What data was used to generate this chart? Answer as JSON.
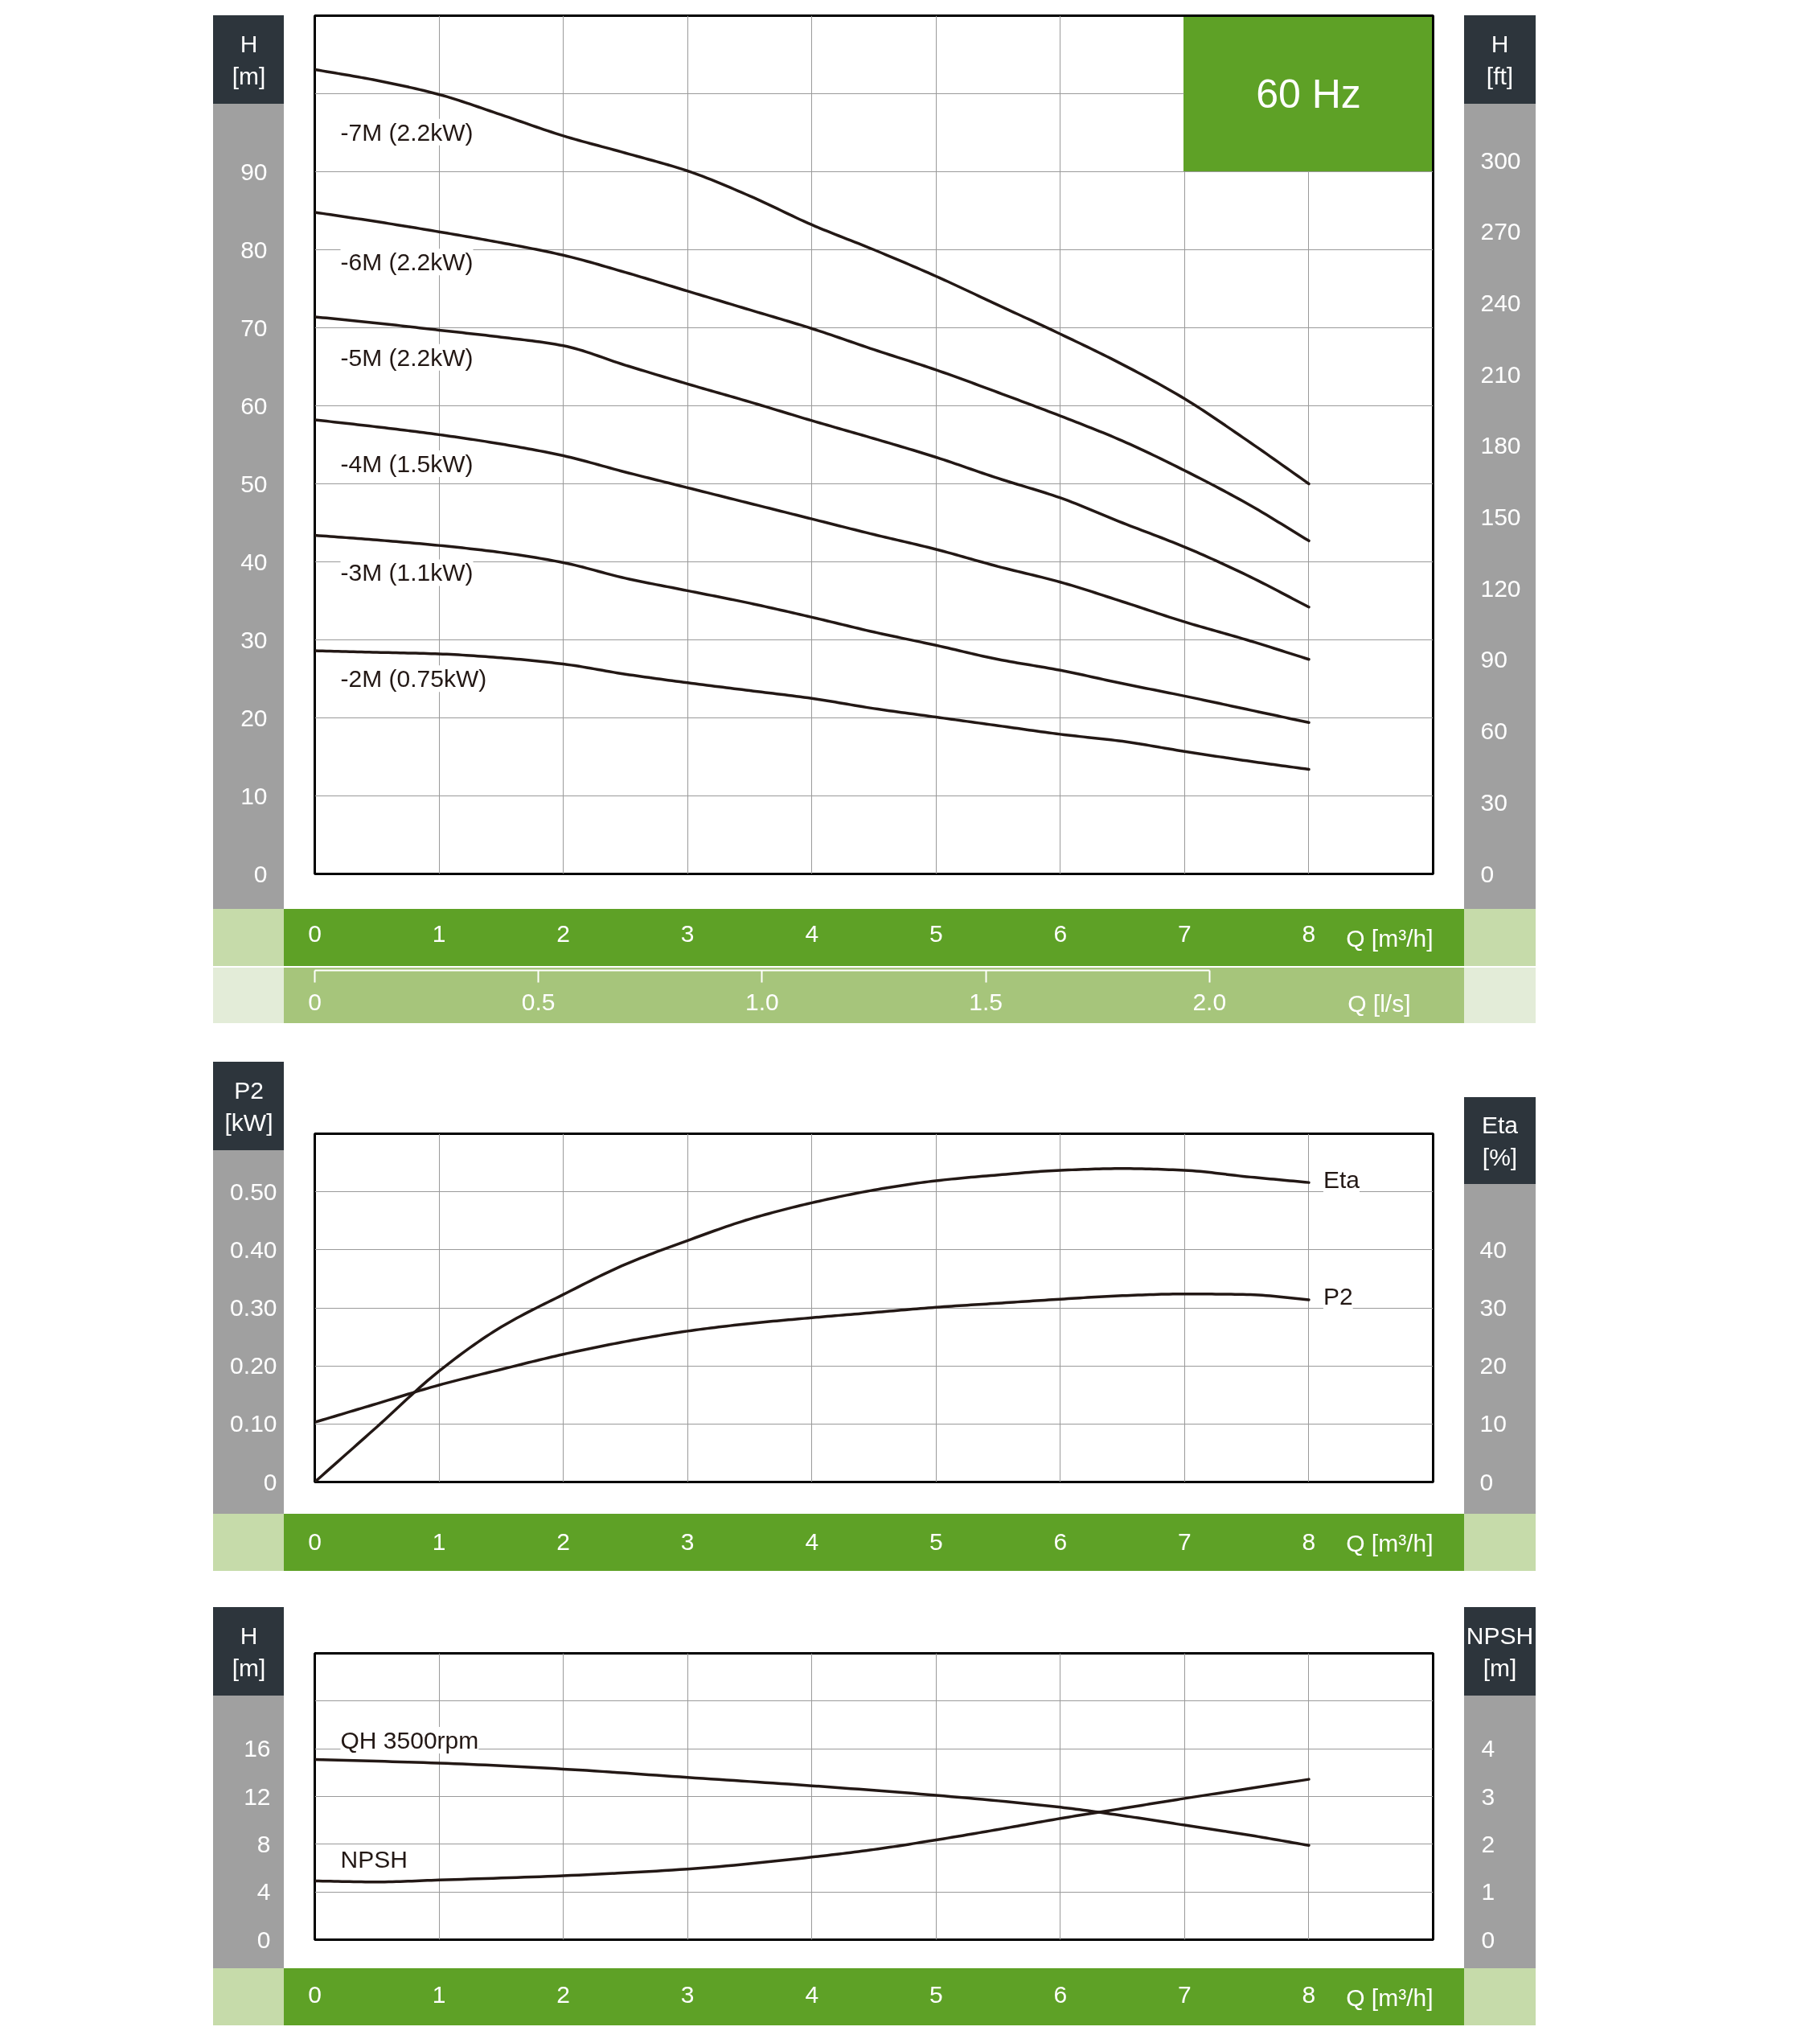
{
  "chart_data": [
    {
      "type": "line",
      "title": "60 Hz",
      "xlabel": "Q [m³/h]",
      "ylabel": "H [m]",
      "y2label": "H [ft]",
      "x2label": "Q [l/s]",
      "xlim": [
        0,
        9
      ],
      "xticks": [
        0,
        1,
        2,
        3,
        4,
        5,
        6,
        7,
        8
      ],
      "ylim": [
        0,
        110
      ],
      "yticks": [
        0,
        10,
        20,
        30,
        40,
        50,
        60,
        70,
        80,
        90,
        {
          "value": 100,
          "label": null
        }
      ],
      "y2lim": [
        0,
        360.9
      ],
      "y2ticks": [
        0,
        30,
        60,
        90,
        120,
        150,
        180,
        210,
        240,
        270,
        300
      ],
      "x2lim": [
        0,
        2.5
      ],
      "x2ticks": [
        0,
        0.5,
        {
          "value": 1,
          "label": "1.0"
        },
        1.5,
        {
          "value": 2,
          "label": "2.0"
        }
      ],
      "grid": true,
      "x": [
        0,
        0.5,
        1,
        1.5,
        2,
        2.5,
        3,
        3.5,
        4,
        4.5,
        5,
        5.5,
        6,
        6.5,
        7,
        7.5,
        8
      ],
      "series": [
        {
          "name": "-7M (2.2kW)",
          "color": "#231815",
          "values": [
            103.1,
            101.7,
            99.9,
            97.3,
            94.6,
            92.4,
            90.1,
            86.9,
            83.2,
            80.0,
            76.6,
            72.9,
            69.2,
            65.3,
            60.9,
            55.6,
            50.0
          ]
        },
        {
          "name": "-6M (2.2kW)",
          "color": "#231815",
          "values": [
            84.8,
            83.6,
            82.3,
            80.9,
            79.3,
            77.1,
            74.7,
            72.3,
            69.9,
            67.2,
            64.6,
            61.7,
            58.7,
            55.5,
            51.7,
            47.5,
            42.7
          ]
        },
        {
          "name": "-5M (2.2kW)",
          "color": "#231815",
          "values": [
            71.4,
            70.6,
            69.7,
            68.8,
            67.7,
            65.2,
            62.8,
            60.5,
            58.1,
            55.8,
            53.4,
            50.7,
            48.2,
            45.0,
            41.9,
            38.3,
            34.2
          ]
        },
        {
          "name": "-4M (1.5kW)",
          "color": "#231815",
          "values": [
            58.2,
            57.3,
            56.3,
            55.1,
            53.6,
            51.5,
            49.5,
            47.5,
            45.5,
            43.5,
            41.6,
            39.4,
            37.4,
            34.9,
            32.3,
            30.0,
            27.5
          ]
        },
        {
          "name": "-3M (1.1kW)",
          "color": "#231815",
          "values": [
            43.4,
            42.8,
            42.1,
            41.2,
            39.9,
            37.9,
            36.3,
            34.7,
            32.9,
            31.0,
            29.3,
            27.5,
            26.1,
            24.4,
            22.8,
            21.1,
            19.4
          ]
        },
        {
          "name": "-2M (0.75kW)",
          "color": "#231815",
          "values": [
            28.6,
            28.4,
            28.2,
            27.7,
            26.9,
            25.6,
            24.5,
            23.5,
            22.5,
            21.2,
            20.1,
            19.0,
            17.9,
            17.0,
            15.7,
            14.5,
            13.4
          ]
        }
      ]
    },
    {
      "type": "line",
      "xlabel": "Q [m³/h]",
      "ylabel": "P2 [kW]",
      "y2label": "Eta [%]",
      "xlim": [
        0,
        9
      ],
      "xticks": [
        0,
        1,
        2,
        3,
        4,
        5,
        6,
        7,
        8
      ],
      "ylim": [
        0,
        0.6
      ],
      "yticks": [
        0,
        {
          "value": 0.1,
          "label": "0.10"
        },
        {
          "value": 0.2,
          "label": "0.20"
        },
        {
          "value": 0.3,
          "label": "0.30"
        },
        {
          "value": 0.4,
          "label": "0.40"
        },
        {
          "value": 0.5,
          "label": "0.50"
        }
      ],
      "y2lim": [
        0,
        60
      ],
      "y2ticks": [
        0,
        10,
        20,
        30,
        40
      ],
      "grid": true,
      "x": [
        0,
        0.5,
        1,
        1.5,
        2,
        2.5,
        3,
        3.5,
        4,
        4.5,
        5,
        5.5,
        6,
        6.5,
        7,
        7.5,
        8
      ],
      "series": [
        {
          "name": "Eta",
          "color": "#231815",
          "axis": "y2",
          "values": [
            0,
            9.5,
            19.1,
            26.7,
            32.3,
            37.5,
            41.6,
            45.3,
            48.1,
            50.3,
            51.9,
            52.9,
            53.7,
            54.0,
            53.7,
            52.6,
            51.6
          ]
        },
        {
          "name": "P2",
          "color": "#231815",
          "values": [
            0.103,
            0.135,
            0.167,
            0.194,
            0.22,
            0.242,
            0.26,
            0.273,
            0.283,
            0.292,
            0.301,
            0.308,
            0.315,
            0.321,
            0.324,
            0.323,
            0.314
          ]
        }
      ]
    },
    {
      "type": "line",
      "xlabel": "Q [m³/h]",
      "ylabel": "H [m]",
      "y2label": "NPSH [m]",
      "xlim": [
        0,
        9
      ],
      "xticks": [
        0,
        1,
        2,
        3,
        4,
        5,
        6,
        7,
        8
      ],
      "ylim": [
        0,
        24
      ],
      "yticks": [
        0,
        4,
        8,
        12,
        16,
        {
          "value": 20,
          "label": null
        }
      ],
      "y2lim": [
        0,
        6
      ],
      "y2ticks": [
        0,
        1,
        2,
        3,
        4
      ],
      "grid": true,
      "series": [
        {
          "name": "QH 3500rpm",
          "color": "#231815",
          "x": [
            0,
            1,
            2,
            3,
            4,
            5,
            6,
            6.5,
            7,
            7.5,
            8
          ],
          "values": [
            15.1,
            14.8,
            14.3,
            13.6,
            12.9,
            12.1,
            11.1,
            10.4,
            9.6,
            8.8,
            7.9
          ]
        },
        {
          "name": "NPSH",
          "color": "#231815",
          "axis": "y2",
          "x": [
            0,
            0.5,
            1,
            2,
            3,
            4,
            4.5,
            5,
            5.5,
            6,
            6.5,
            7,
            7.5,
            8
          ],
          "values": [
            1.23,
            1.21,
            1.25,
            1.34,
            1.48,
            1.73,
            1.89,
            2.09,
            2.31,
            2.54,
            2.75,
            2.96,
            3.16,
            3.36
          ]
        }
      ]
    }
  ]
}
